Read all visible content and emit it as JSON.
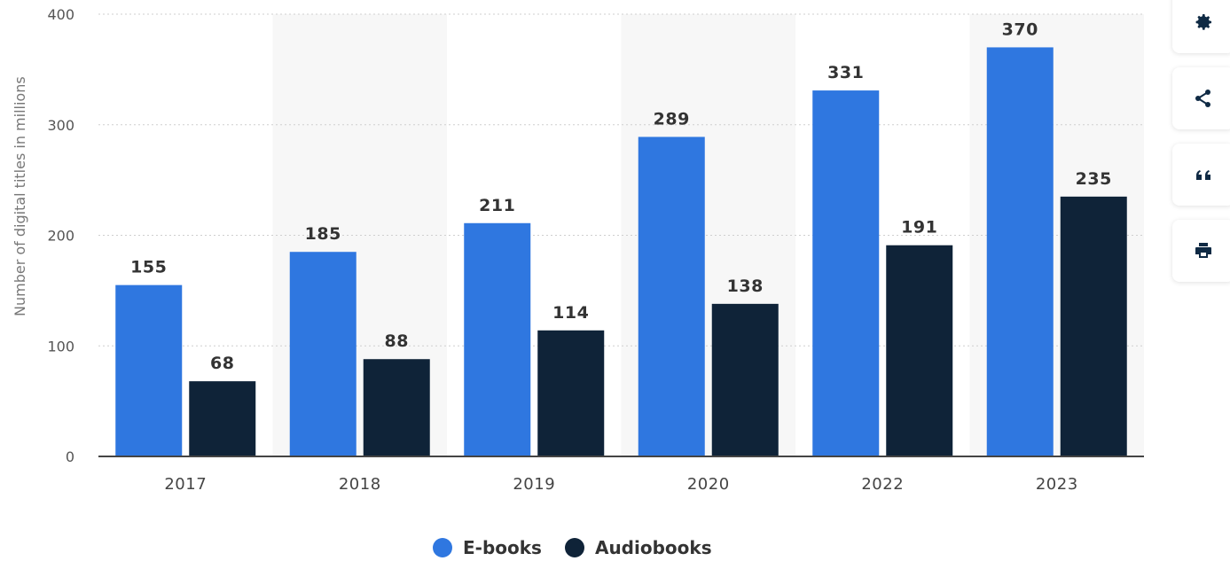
{
  "chart_data": {
    "type": "bar",
    "categories": [
      "2017",
      "2018",
      "2019",
      "2020",
      "2022",
      "2023"
    ],
    "series": [
      {
        "name": "E-books",
        "color": "#2f77e0",
        "values": [
          155,
          185,
          211,
          289,
          331,
          370
        ]
      },
      {
        "name": "Audiobooks",
        "color": "#0f2338",
        "values": [
          68,
          88,
          114,
          138,
          191,
          235
        ]
      }
    ],
    "ylabel": "Number of digital titles in millions",
    "xlabel": "",
    "ylim": [
      0,
      400
    ],
    "yticks": [
      0,
      100,
      200,
      300,
      400
    ],
    "grid": true,
    "legend": "bottom-center"
  },
  "legend": {
    "ebooks_label": "E-books",
    "audiobooks_label": "Audiobooks"
  },
  "toolbar": {
    "icons": [
      "gear-icon",
      "share-icon",
      "quote-icon",
      "print-icon"
    ]
  }
}
